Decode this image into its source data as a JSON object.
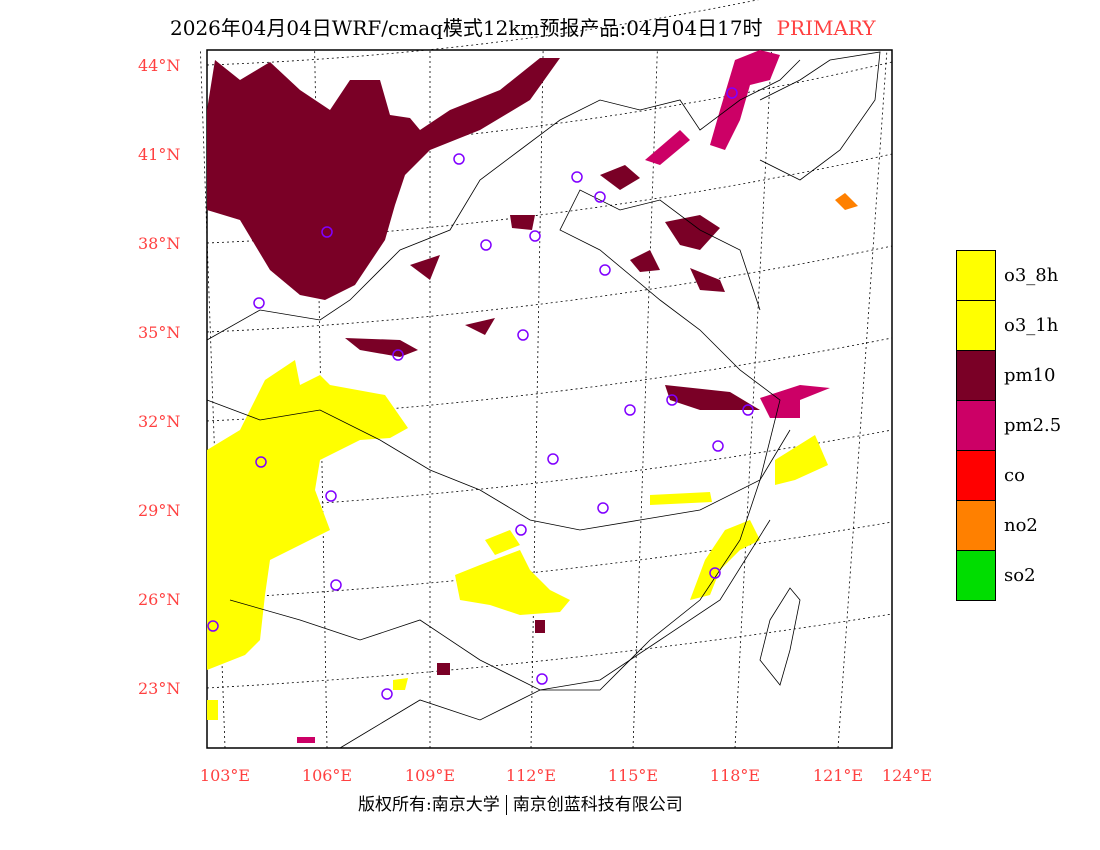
{
  "title": {
    "main": "2026年04月04日WRF/cmaq模式12km预报产品:04月04日17时",
    "pollutant": "PRIMARY"
  },
  "lat_labels": [
    "44°N",
    "41°N",
    "38°N",
    "35°N",
    "32°N",
    "29°N",
    "26°N",
    "23°N"
  ],
  "lon_labels": [
    "103°E",
    "106°E",
    "109°E",
    "112°E",
    "115°E",
    "118°E",
    "121°E",
    "124°E"
  ],
  "legend": [
    {
      "label": "o3_8h",
      "color": "#ffff00"
    },
    {
      "label": "o3_1h",
      "color": "#ffff00"
    },
    {
      "label": "pm10",
      "color": "#7a0026"
    },
    {
      "label": "pm2.5",
      "color": "#cc0066"
    },
    {
      "label": "co",
      "color": "#ff0000"
    },
    {
      "label": "no2",
      "color": "#ff8000"
    },
    {
      "label": "so2",
      "color": "#00dd00"
    }
  ],
  "footer": {
    "left": "版权所有:南京大学",
    "right": "南京创蓝科技有限公司"
  },
  "colors": {
    "station": "#8000ff",
    "axis_label": "#ff4040"
  }
}
